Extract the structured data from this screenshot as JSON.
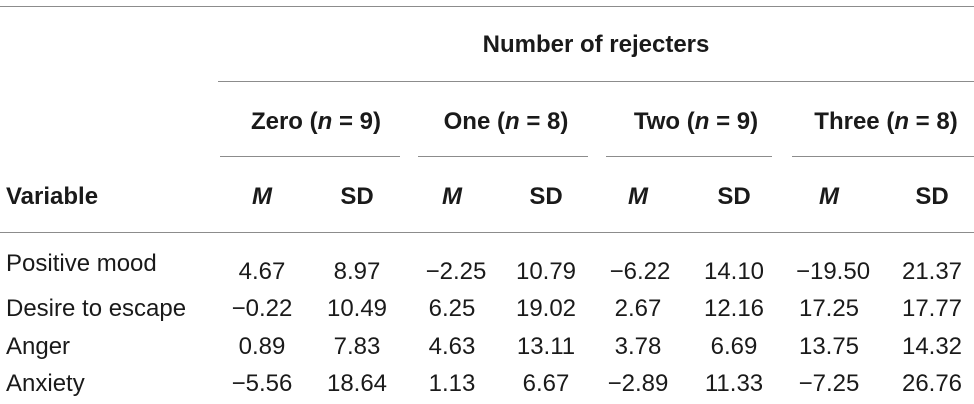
{
  "table": {
    "spanner": "Number of rejecters",
    "groups": [
      {
        "label": "Zero",
        "n": "9"
      },
      {
        "label": "One",
        "n": "8"
      },
      {
        "label": "Two",
        "n": "9"
      },
      {
        "label": "Three",
        "n": "8"
      }
    ],
    "n_symbol": "n",
    "stat_headers": {
      "mean": "M",
      "sd": "SD"
    },
    "variable_header": "Variable",
    "rows": [
      {
        "label": "Positive mood",
        "values": [
          "4.67",
          "8.97",
          "−2.25",
          "10.79",
          "−6.22",
          "14.10",
          "−19.50",
          "21.37"
        ]
      },
      {
        "label": "Desire to escape",
        "values": [
          "−0.22",
          "10.49",
          "6.25",
          "19.02",
          "2.67",
          "12.16",
          "17.25",
          "17.77"
        ]
      },
      {
        "label": "Anger",
        "values": [
          "0.89",
          "7.83",
          "4.63",
          "13.11",
          "3.78",
          "6.69",
          "13.75",
          "14.32"
        ]
      },
      {
        "label": "Anxiety",
        "values": [
          "−5.56",
          "18.64",
          "1.13",
          "6.67",
          "−2.89",
          "11.33",
          "−7.25",
          "26.76"
        ]
      }
    ]
  }
}
